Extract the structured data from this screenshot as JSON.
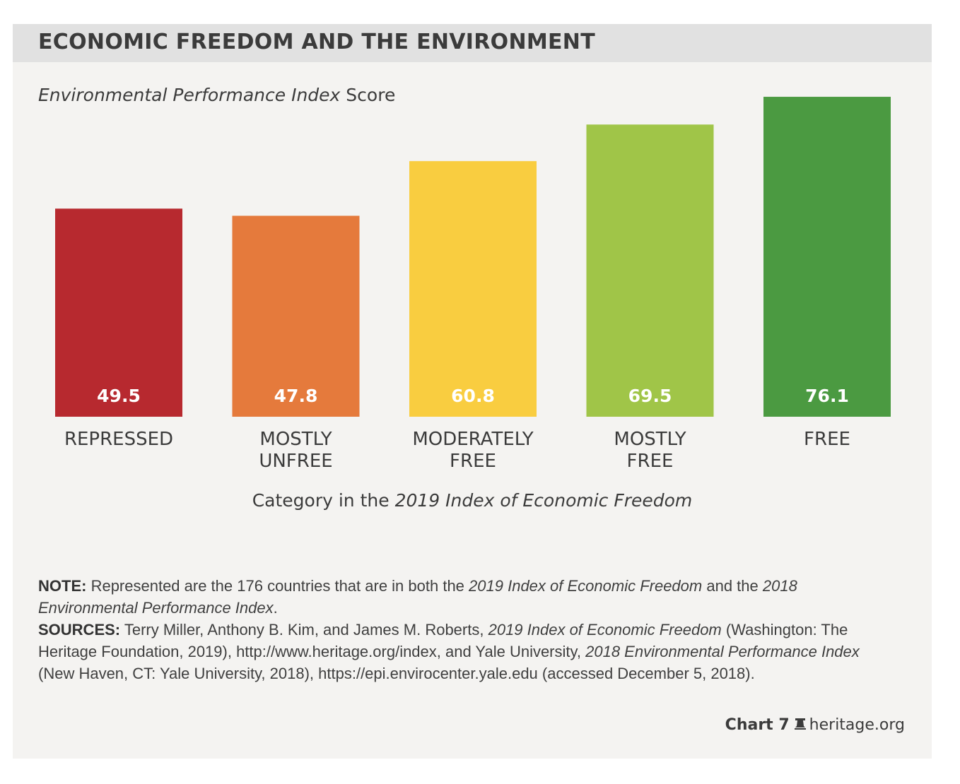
{
  "header": {
    "title": "ECONOMIC FREEDOM AND THE ENVIRONMENT"
  },
  "chart_data": {
    "type": "bar",
    "title": "ECONOMIC FREEDOM AND THE ENVIRONMENT",
    "ylabel_italic": "Environmental Performance Index",
    "ylabel_rest": " Score",
    "xlabel_prefix": "Category in the ",
    "xlabel_italic": "2019 Index of Economic Freedom",
    "categories": [
      {
        "line1": "REPRESSED",
        "line2": ""
      },
      {
        "line1": "MOSTLY",
        "line2": "UNFREE"
      },
      {
        "line1": "MODERATELY",
        "line2": "FREE"
      },
      {
        "line1": "MOSTLY",
        "line2": "FREE"
      },
      {
        "line1": "FREE",
        "line2": ""
      }
    ],
    "values": [
      49.5,
      47.8,
      60.8,
      69.5,
      76.1
    ],
    "value_labels": [
      "49.5",
      "47.8",
      "60.8",
      "69.5",
      "76.1"
    ],
    "colors": [
      "#b7292f",
      "#e57a3c",
      "#f9cd40",
      "#a0c548",
      "#4b9a41"
    ],
    "ylim": [
      0,
      100
    ],
    "grid": false
  },
  "notes": {
    "note_label": "NOTE:",
    "note_t1": " Represented are the 176 countries that are in both the ",
    "note_i1": "2019 Index of Economic Freedom",
    "note_t2": " and the ",
    "note_i2": "2018 Environmental Performance Index",
    "note_t3": ".",
    "sources_label": "SOURCES:",
    "src_t1": " Terry Miller, Anthony B. Kim, and James M. Roberts, ",
    "src_i1": "2019 Index of Economic Freedom",
    "src_t2": " (Washington: The Heritage Foundation, 2019), http://www.heritage.org/index, and Yale University, ",
    "src_i2": "2018 Environmental Performance Index",
    "src_t3": " (New Haven, CT: Yale University, 2018), https://epi.envirocenter.yale.edu (accessed December 5, 2018)."
  },
  "footer": {
    "chart_number": "Chart 7",
    "site": "heritage.org"
  }
}
